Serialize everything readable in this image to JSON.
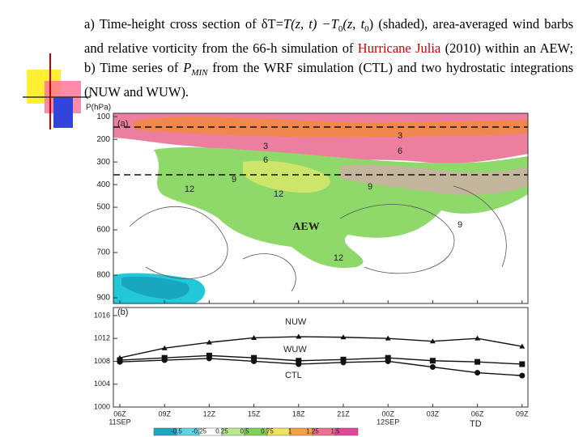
{
  "caption": [
    "a) Time-height cross section of δT=",
    "T(z, t) −T",
    "0",
    "(z, t",
    "0",
    ") (shaded), area-averaged wind barbs and relative vorticity from the 66-h simulation of ",
    "Hurricane Julia",
    " (2010) within an AEW; b) Time series of ",
    "P",
    "MIN",
    " from the WRF simulation (CTL) and two hydrostatic integrations (NUW and WUW)."
  ],
  "categories": [
    "06Z",
    "09Z",
    "12Z",
    "15Z",
    "18Z",
    "21Z",
    "00Z",
    "03Z",
    "06Z",
    "09Z"
  ],
  "dates": [
    "11SEP",
    "12SEP"
  ],
  "x_note": "TD",
  "panel_a": {
    "label": "(a)",
    "y_axis_label": "P(hPa)",
    "ylim": [
      85,
      925
    ],
    "yticks": [
      100,
      200,
      300,
      400,
      500,
      600,
      700,
      800,
      900
    ],
    "contour_labels": [
      "3",
      "6",
      "3",
      "6",
      "12",
      "9",
      "12",
      "9",
      "9",
      "12"
    ],
    "annotation": "AEW"
  },
  "panel_b": {
    "label": "(b)",
    "ylim": [
      1000,
      1017.4
    ],
    "yticks": [
      1000,
      1004,
      1008,
      1012,
      1016
    ],
    "series": [
      {
        "name": "NUW",
        "color": "#111111",
        "marker": "triangle",
        "values": [
          1008.6,
          1010.3,
          1011.3,
          1012.1,
          1012.3,
          1012.2,
          1012,
          1011.5,
          1012,
          1010.6
        ]
      },
      {
        "name": "WUW",
        "color": "#111111",
        "marker": "square",
        "values": [
          1008.2,
          1008.6,
          1009,
          1008.6,
          1008.1,
          1008.3,
          1008.6,
          1008.1,
          1007.9,
          1007.5
        ]
      },
      {
        "name": "CTL",
        "color": "#111111",
        "marker": "circle",
        "values": [
          1007.9,
          1008.2,
          1008.5,
          1008,
          1007.5,
          1007.8,
          1008,
          1007,
          1006,
          1005.5
        ]
      }
    ]
  },
  "colorbar": {
    "ticks": [
      -0.5,
      -0.25,
      0.25,
      0.5,
      0.75,
      1,
      1.25,
      1.5
    ],
    "colors": [
      "#1aa8c0",
      "#5fd3e3",
      "#ffffff",
      "#b8e890",
      "#7fd05a",
      "#f0e35a",
      "#f3a040",
      "#ee6f8e",
      "#e2479a"
    ]
  }
}
